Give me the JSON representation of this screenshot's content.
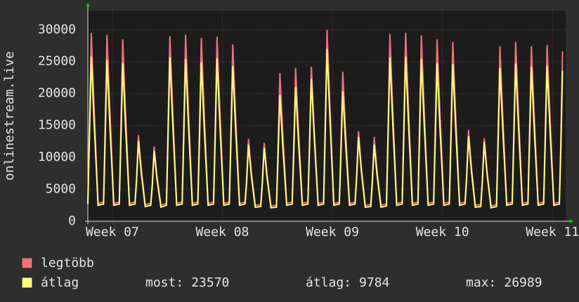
{
  "chart_data": {
    "type": "line",
    "y_label": "onlinestream.live",
    "x": [
      0,
      0.1,
      0.22,
      0.4,
      0.65,
      1,
      1.1,
      1.22,
      1.4,
      1.65,
      2,
      2.1,
      2.22,
      2.4,
      2.65,
      3,
      3.1,
      3.22,
      3.4,
      3.65,
      4,
      4.1,
      4.22,
      4.4,
      4.65,
      5,
      5.1,
      5.22,
      5.4,
      5.65,
      6,
      6.1,
      6.22,
      6.4,
      6.65,
      7,
      7.1,
      7.22,
      7.4,
      7.65,
      8,
      8.1,
      8.22,
      8.4,
      8.65,
      9,
      9.1,
      9.22,
      9.4,
      9.65,
      10,
      10.1,
      10.22,
      10.4,
      10.65,
      11,
      11.1,
      11.22,
      11.4,
      11.65,
      12,
      12.1,
      12.22,
      12.4,
      12.65,
      13,
      13.1,
      13.22,
      13.4,
      13.65,
      14,
      14.1,
      14.22,
      14.4,
      14.65,
      15,
      15.1,
      15.22,
      15.4,
      15.65,
      16,
      16.1,
      16.22,
      16.4,
      16.65,
      17,
      17.1,
      17.22,
      17.4,
      17.65,
      18,
      18.1,
      18.22,
      18.4,
      18.65,
      19,
      19.1,
      19.22,
      19.4,
      19.65,
      20,
      20.1,
      20.22,
      20.4,
      20.65,
      21,
      21.1,
      21.22,
      21.4,
      21.65,
      22,
      22.1,
      22.22,
      22.4,
      22.65,
      23,
      23.1,
      23.22,
      23.4,
      23.65,
      24,
      24.1,
      24.22,
      24.4,
      24.65,
      25,
      25.1,
      25.22,
      25.4,
      25.65,
      26,
      26.1,
      26.22,
      26.4,
      26.65,
      27,
      27.1,
      27.22,
      27.4,
      27.65,
      28,
      28.1,
      28.22,
      28.4,
      28.65,
      29,
      29.1,
      29.22,
      29.4,
      29.65,
      30,
      30.1,
      30.2
    ],
    "series": [
      {
        "name": "legtöbb",
        "color": "#f07078",
        "values": [
          2900,
          14750,
          29500,
          17700,
          2800,
          3000,
          14600,
          29200,
          17520,
          2800,
          3000,
          14250,
          28500,
          17100,
          2800,
          3000,
          6750,
          13500,
          8100,
          2600,
          2800,
          5850,
          11700,
          7020,
          2500,
          2800,
          14500,
          29000,
          17400,
          2800,
          3000,
          14600,
          29200,
          17520,
          2800,
          3000,
          14350,
          28700,
          17220,
          2800,
          3000,
          14450,
          28900,
          17340,
          2800,
          3000,
          13850,
          27700,
          16620,
          2800,
          3000,
          6450,
          12900,
          7740,
          2500,
          2600,
          6150,
          12300,
          7380,
          2400,
          2500,
          11600,
          23200,
          13920,
          2800,
          3000,
          12000,
          24000,
          14400,
          2800,
          3000,
          12100,
          24200,
          14520,
          2800,
          3000,
          15000,
          30000,
          18000,
          2800,
          3000,
          11700,
          23400,
          14040,
          2800,
          3000,
          7050,
          14100,
          8460,
          2500,
          2600,
          6600,
          13200,
          7920,
          2500,
          2700,
          14650,
          29300,
          17580,
          2800,
          3000,
          14750,
          29500,
          17700,
          2800,
          3000,
          14550,
          29100,
          17460,
          2800,
          3000,
          14250,
          28500,
          17100,
          2800,
          3000,
          14050,
          28100,
          16860,
          2800,
          3000,
          7150,
          14300,
          8580,
          2500,
          2600,
          6500,
          13000,
          7800,
          2400,
          2600,
          13700,
          27400,
          16440,
          2800,
          3000,
          14050,
          28100,
          16860,
          2800,
          3000,
          13700,
          27400,
          16440,
          2800,
          3000,
          13800,
          27600,
          16560,
          2800,
          3000,
          13300,
          26600
        ]
      },
      {
        "name": "átlag",
        "color": "#ffff80",
        "values": [
          2700,
          12900,
          25800,
          15480,
          2500,
          2700,
          12650,
          25300,
          15180,
          2500,
          2700,
          12350,
          24700,
          14820,
          2500,
          2700,
          6300,
          12600,
          7560,
          2300,
          2500,
          5500,
          11000,
          6600,
          2200,
          2500,
          12850,
          25700,
          15420,
          2500,
          2700,
          12700,
          25400,
          15240,
          2500,
          2700,
          12450,
          24900,
          14940,
          2500,
          2700,
          12750,
          25500,
          15300,
          2500,
          2700,
          12150,
          24300,
          14580,
          2500,
          2700,
          6000,
          12000,
          7200,
          2200,
          2300,
          5750,
          11500,
          6900,
          2100,
          2200,
          9900,
          19800,
          11880,
          2500,
          2700,
          10500,
          21000,
          12600,
          2500,
          2700,
          11150,
          22300,
          13380,
          2500,
          2700,
          13490,
          26989,
          16190,
          2500,
          2700,
          10150,
          20300,
          12180,
          2500,
          2700,
          6600,
          13200,
          7920,
          2200,
          2300,
          6000,
          12000,
          7200,
          2200,
          2400,
          12800,
          25600,
          15360,
          2500,
          2700,
          12900,
          25800,
          15480,
          2500,
          2700,
          12700,
          25400,
          15240,
          2500,
          2700,
          12350,
          24700,
          14820,
          2500,
          2700,
          12300,
          24600,
          14760,
          2500,
          2700,
          6650,
          13300,
          7980,
          2200,
          2300,
          6200,
          12400,
          7440,
          2100,
          2300,
          12000,
          24000,
          14400,
          2500,
          2700,
          12350,
          24700,
          14820,
          2500,
          2700,
          12100,
          24200,
          14520,
          2500,
          2700,
          12150,
          24300,
          14580,
          2500,
          2700,
          11800,
          23570
        ]
      }
    ],
    "xlim": [
      0,
      30.4
    ],
    "xticks": [
      {
        "value": 1.56,
        "label": "Week 07"
      },
      {
        "value": 8.56,
        "label": "Week 08"
      },
      {
        "value": 15.56,
        "label": "Week 09"
      },
      {
        "value": 22.56,
        "label": "Week 10"
      },
      {
        "value": 29.56,
        "label": "Week 11"
      }
    ],
    "ylim": [
      0,
      33000
    ],
    "yticks": [
      0,
      5000,
      10000,
      15000,
      20000,
      25000,
      30000
    ],
    "grid": true,
    "stats": [
      {
        "label": "most:",
        "value": 23570
      },
      {
        "label": "átlag:",
        "value": 9784
      },
      {
        "label": "max:",
        "value": 26989
      }
    ]
  }
}
